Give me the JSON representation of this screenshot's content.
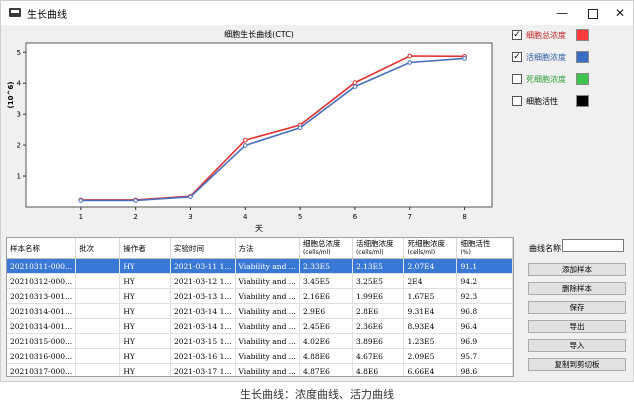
{
  "window": {
    "title": "生长曲线"
  },
  "chart_data": {
    "type": "line",
    "title": "细胞生长曲线(CTC)",
    "xlabel": "天",
    "ylabel": "(10^6)",
    "x": [
      1,
      2,
      3,
      4,
      5,
      6,
      7,
      8
    ],
    "xticks": [
      "1",
      "2",
      "3",
      "4",
      "5",
      "6",
      "7",
      "8"
    ],
    "yticks": [
      "1",
      "2",
      "3",
      "4",
      "5"
    ],
    "xlim": [
      0,
      8.5
    ],
    "ylim": [
      0,
      5.3
    ],
    "series": [
      {
        "name": "细胞总浓度",
        "color": "#e03030",
        "values": [
          0.23,
          0.23,
          0.35,
          2.16,
          2.65,
          4.02,
          4.88,
          4.87
        ]
      },
      {
        "name": "活细胞浓度",
        "color": "#4a6fc0",
        "values": [
          0.21,
          0.21,
          0.33,
          1.99,
          2.56,
          3.89,
          4.67,
          4.8
        ]
      }
    ]
  },
  "legend": [
    {
      "label": "细胞总浓度",
      "checked": true,
      "label_color": "#c0201e",
      "swatch": "#ff3b3b"
    },
    {
      "label": "活细胞浓度",
      "checked": true,
      "label_color": "#2e56a8",
      "swatch": "#3b6cc4"
    },
    {
      "label": "死细胞浓度",
      "checked": false,
      "label_color": "#2e9e3a",
      "swatch": "#3cc64f"
    },
    {
      "label": "细胞活性",
      "checked": false,
      "label_color": "#000000",
      "swatch": "#000000"
    }
  ],
  "table": {
    "columns": [
      {
        "label": "样本名称",
        "sub": ""
      },
      {
        "label": "批次",
        "sub": ""
      },
      {
        "label": "操作者",
        "sub": ""
      },
      {
        "label": "实验时间",
        "sub": ""
      },
      {
        "label": "方法",
        "sub": ""
      },
      {
        "label": "细胞总浓度",
        "sub": "(cells/ml)"
      },
      {
        "label": "活细胞浓度",
        "sub": "(cells/ml)"
      },
      {
        "label": "死细胞浓度",
        "sub": "(cells/ml)"
      },
      {
        "label": "细胞活性",
        "sub": "(%)"
      }
    ],
    "rows": [
      [
        "20210311-000...",
        "",
        "HY",
        "2021-03-11 1...",
        "Viability and ...",
        "2.33E5",
        "2.13E5",
        "2.07E4",
        "91.1"
      ],
      [
        "20210312-000...",
        "",
        "HY",
        "2021-03-12 1...",
        "Viability and ...",
        "3.45E5",
        "3.25E5",
        "2E4",
        "94.2"
      ],
      [
        "20210313-001...",
        "",
        "HY",
        "2021-03-13 1...",
        "Viability and ...",
        "2.16E6",
        "1.99E6",
        "1.67E5",
        "92.3"
      ],
      [
        "20210314-001...",
        "",
        "HY",
        "2021-03-14 1...",
        "Viability and ...",
        "2.9E6",
        "2.8E6",
        "9.31E4",
        "96.8"
      ],
      [
        "20210314-001...",
        "",
        "HY",
        "2021-03-14 1...",
        "Viability and ...",
        "2.45E6",
        "2.36E6",
        "8.93E4",
        "96.4"
      ],
      [
        "20210315-000...",
        "",
        "HY",
        "2021-03-15 1...",
        "Viability and ...",
        "4.02E6",
        "3.89E6",
        "1.23E5",
        "96.9"
      ],
      [
        "20210316-000...",
        "",
        "HY",
        "2021-03-16 1...",
        "Viability and ...",
        "4.88E6",
        "4.67E6",
        "2.09E5",
        "95.7"
      ],
      [
        "20210317-000...",
        "",
        "HY",
        "2021-03-17 1...",
        "Viability and ...",
        "4.87E6",
        "4.8E6",
        "6.66E4",
        "98.6"
      ]
    ]
  },
  "side": {
    "curve_name_label": "曲线名称",
    "curve_name_value": "",
    "buttons": [
      "添加样本",
      "删除样本",
      "保存",
      "导出",
      "导入",
      "复制到剪切板"
    ]
  },
  "caption": "生长曲线：浓度曲线、活力曲线"
}
